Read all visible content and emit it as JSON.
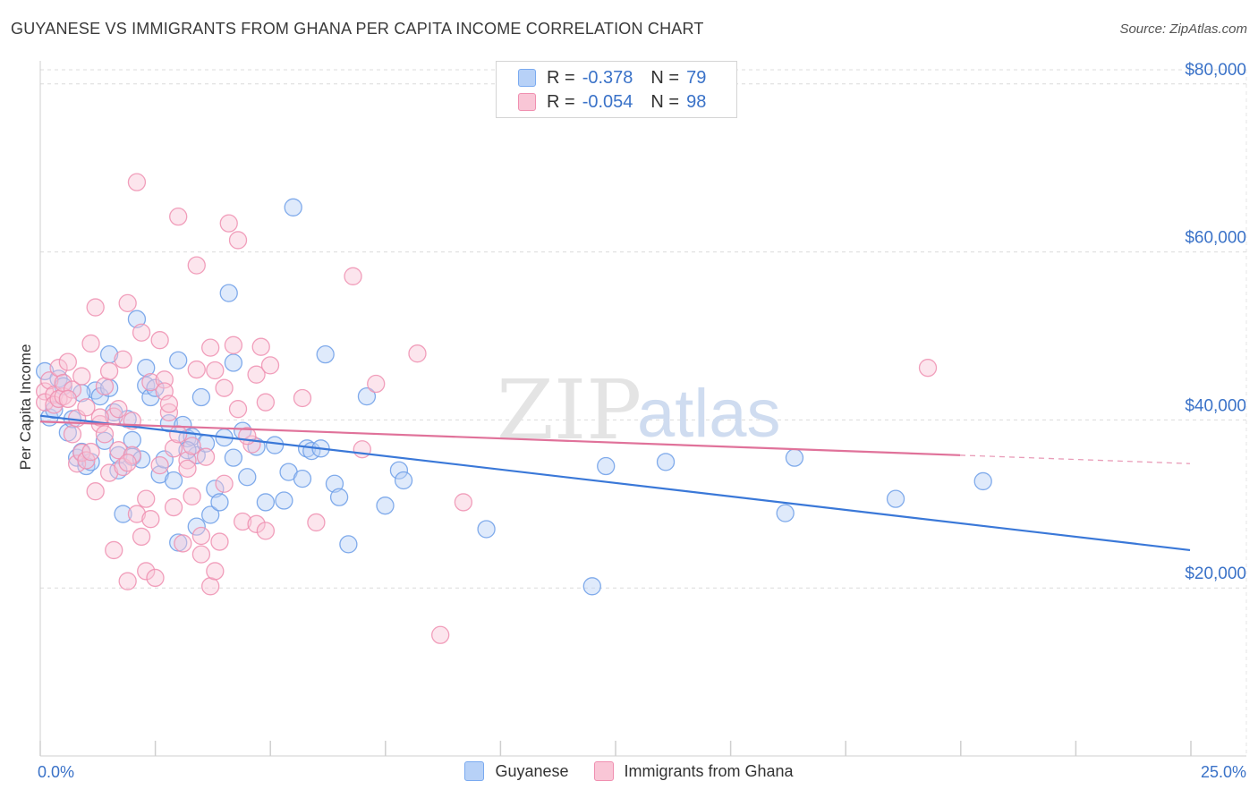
{
  "title": "GUYANESE VS IMMIGRANTS FROM GHANA PER CAPITA INCOME CORRELATION CHART",
  "source": "Source: ZipAtlas.com",
  "watermark": {
    "zip": "ZIP",
    "atlas": "atlas"
  },
  "legend_top": [
    {
      "r_label": "R =",
      "r_value": "-0.378",
      "n_label": "N =",
      "n_value": "79",
      "color": "#7aaaf0",
      "fill": "#b7d1f7"
    },
    {
      "r_label": "R =",
      "r_value": "-0.054",
      "n_label": "N =",
      "n_value": "98",
      "color": "#f08fb0",
      "fill": "#f9c6d6"
    }
  ],
  "legend_bottom": [
    {
      "label": "Guyanese",
      "color": "#7aaaf0",
      "fill": "#b7d1f7"
    },
    {
      "label": "Immigrants from Ghana",
      "color": "#f08fb0",
      "fill": "#f9c6d6"
    }
  ],
  "chart_data": {
    "type": "scatter",
    "ylabel": "Per Capita Income",
    "xlim": [
      0,
      25
    ],
    "ylim": [
      0,
      82000
    ],
    "x_tick_labels": [
      "0.0%",
      "25.0%"
    ],
    "y_ticks": [
      20000,
      40000,
      60000,
      80000
    ],
    "y_tick_labels": [
      "$20,000",
      "$40,000",
      "$60,000",
      "$80,000"
    ],
    "grid": "horizontal dashed",
    "series": [
      {
        "name": "Guyanese",
        "color": "#3a78d8",
        "trend": {
          "x0": 0,
          "y0": 40500,
          "x1": 25,
          "y1": 24500,
          "solid_until": 25
        },
        "points": [
          [
            0.1,
            45800
          ],
          [
            0.2,
            40300
          ],
          [
            0.4,
            44900
          ],
          [
            0.5,
            44000
          ],
          [
            0.6,
            38500
          ],
          [
            0.7,
            40100
          ],
          [
            0.8,
            35500
          ],
          [
            0.9,
            36200
          ],
          [
            1.0,
            34500
          ],
          [
            1.1,
            35000
          ],
          [
            1.2,
            43500
          ],
          [
            1.3,
            42800
          ],
          [
            1.4,
            37500
          ],
          [
            1.5,
            43800
          ],
          [
            1.5,
            47800
          ],
          [
            1.6,
            40900
          ],
          [
            1.7,
            35800
          ],
          [
            1.7,
            34000
          ],
          [
            1.8,
            28800
          ],
          [
            1.9,
            40100
          ],
          [
            2.0,
            35600
          ],
          [
            2.1,
            52000
          ],
          [
            2.2,
            35300
          ],
          [
            2.3,
            44100
          ],
          [
            2.3,
            46200
          ],
          [
            2.4,
            42700
          ],
          [
            2.5,
            43800
          ],
          [
            2.6,
            33500
          ],
          [
            2.7,
            35300
          ],
          [
            2.8,
            39600
          ],
          [
            2.9,
            32800
          ],
          [
            3.0,
            25400
          ],
          [
            3.0,
            47100
          ],
          [
            3.1,
            39400
          ],
          [
            3.2,
            37800
          ],
          [
            3.3,
            38000
          ],
          [
            3.4,
            35800
          ],
          [
            3.4,
            27300
          ],
          [
            3.5,
            42700
          ],
          [
            3.6,
            37200
          ],
          [
            3.7,
            28700
          ],
          [
            3.8,
            31800
          ],
          [
            3.9,
            30200
          ],
          [
            4.0,
            37900
          ],
          [
            4.1,
            55100
          ],
          [
            4.2,
            35500
          ],
          [
            4.2,
            46800
          ],
          [
            4.4,
            38700
          ],
          [
            4.5,
            33200
          ],
          [
            4.7,
            36800
          ],
          [
            4.9,
            30200
          ],
          [
            5.1,
            37000
          ],
          [
            5.3,
            30400
          ],
          [
            5.4,
            33800
          ],
          [
            5.5,
            65300
          ],
          [
            5.7,
            33000
          ],
          [
            5.8,
            36600
          ],
          [
            5.9,
            36300
          ],
          [
            6.1,
            36600
          ],
          [
            6.2,
            47800
          ],
          [
            6.4,
            32400
          ],
          [
            6.5,
            30800
          ],
          [
            6.7,
            25200
          ],
          [
            7.1,
            42800
          ],
          [
            7.5,
            29800
          ],
          [
            7.8,
            34000
          ],
          [
            7.9,
            32800
          ],
          [
            9.7,
            27000
          ],
          [
            12.0,
            20200
          ],
          [
            12.3,
            34500
          ],
          [
            13.6,
            35000
          ],
          [
            16.2,
            28900
          ],
          [
            16.4,
            35500
          ],
          [
            18.6,
            30600
          ],
          [
            20.5,
            32700
          ],
          [
            0.3,
            41200
          ],
          [
            0.9,
            43200
          ],
          [
            2.0,
            37600
          ],
          [
            3.2,
            36400
          ]
        ]
      },
      {
        "name": "Immigrants from Ghana",
        "color": "#e0729a",
        "trend": {
          "x0": 0,
          "y0": 39800,
          "x1": 25,
          "y1": 34800,
          "solid_until": 20
        },
        "points": [
          [
            0.1,
            43400
          ],
          [
            0.1,
            42100
          ],
          [
            0.2,
            44700
          ],
          [
            0.3,
            43000
          ],
          [
            0.3,
            41800
          ],
          [
            0.4,
            42500
          ],
          [
            0.4,
            46200
          ],
          [
            0.5,
            42800
          ],
          [
            0.5,
            44400
          ],
          [
            0.6,
            46900
          ],
          [
            0.7,
            38300
          ],
          [
            0.7,
            43600
          ],
          [
            0.8,
            34800
          ],
          [
            0.8,
            40200
          ],
          [
            0.9,
            45200
          ],
          [
            0.9,
            36100
          ],
          [
            1.0,
            41500
          ],
          [
            1.0,
            35200
          ],
          [
            1.1,
            49100
          ],
          [
            1.1,
            36200
          ],
          [
            1.2,
            53400
          ],
          [
            1.2,
            31500
          ],
          [
            1.3,
            39500
          ],
          [
            1.4,
            38300
          ],
          [
            1.4,
            44000
          ],
          [
            1.5,
            33700
          ],
          [
            1.5,
            45800
          ],
          [
            1.6,
            24500
          ],
          [
            1.6,
            40400
          ],
          [
            1.7,
            36400
          ],
          [
            1.7,
            41300
          ],
          [
            1.8,
            47200
          ],
          [
            1.8,
            34400
          ],
          [
            1.9,
            53900
          ],
          [
            1.9,
            20800
          ],
          [
            2.0,
            35800
          ],
          [
            2.0,
            39900
          ],
          [
            2.1,
            68300
          ],
          [
            2.1,
            28800
          ],
          [
            2.2,
            50400
          ],
          [
            2.2,
            26100
          ],
          [
            2.3,
            22000
          ],
          [
            2.3,
            30600
          ],
          [
            2.4,
            44500
          ],
          [
            2.4,
            28200
          ],
          [
            2.5,
            21200
          ],
          [
            2.6,
            49500
          ],
          [
            2.6,
            34600
          ],
          [
            2.7,
            44800
          ],
          [
            2.7,
            43400
          ],
          [
            2.8,
            40900
          ],
          [
            2.9,
            29600
          ],
          [
            2.9,
            36600
          ],
          [
            3.0,
            64200
          ],
          [
            3.0,
            38300
          ],
          [
            3.1,
            25300
          ],
          [
            3.2,
            35200
          ],
          [
            3.2,
            34200
          ],
          [
            3.3,
            30900
          ],
          [
            3.4,
            58400
          ],
          [
            3.4,
            46000
          ],
          [
            3.5,
            24000
          ],
          [
            3.5,
            26200
          ],
          [
            3.6,
            35600
          ],
          [
            3.7,
            20200
          ],
          [
            3.7,
            48600
          ],
          [
            3.8,
            22000
          ],
          [
            3.8,
            45900
          ],
          [
            3.9,
            25500
          ],
          [
            4.0,
            32400
          ],
          [
            4.0,
            43800
          ],
          [
            4.1,
            63400
          ],
          [
            4.2,
            48900
          ],
          [
            4.3,
            61400
          ],
          [
            4.3,
            41300
          ],
          [
            4.4,
            27900
          ],
          [
            4.6,
            37100
          ],
          [
            4.7,
            27600
          ],
          [
            4.7,
            45400
          ],
          [
            4.8,
            48700
          ],
          [
            4.9,
            42100
          ],
          [
            4.9,
            26800
          ],
          [
            5.0,
            46500
          ],
          [
            5.7,
            42600
          ],
          [
            6.0,
            27800
          ],
          [
            6.8,
            57100
          ],
          [
            7.0,
            36500
          ],
          [
            7.3,
            44300
          ],
          [
            8.2,
            47900
          ],
          [
            8.7,
            14400
          ],
          [
            9.2,
            30200
          ],
          [
            19.3,
            46200
          ],
          [
            0.6,
            42500
          ],
          [
            1.3,
            40300
          ],
          [
            2.8,
            41900
          ],
          [
            3.3,
            36900
          ],
          [
            4.5,
            38100
          ],
          [
            1.9,
            34900
          ]
        ]
      }
    ]
  }
}
